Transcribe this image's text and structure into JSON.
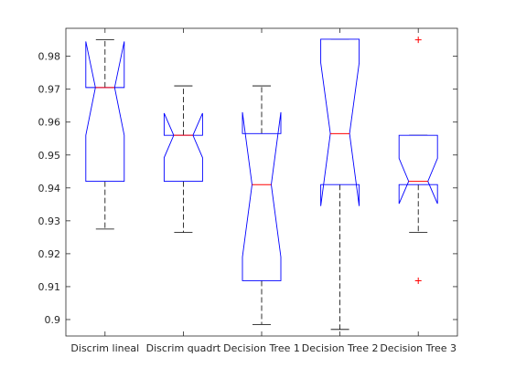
{
  "chart_data": {
    "type": "boxplot",
    "notched": true,
    "title": "",
    "xlabel": "",
    "ylabel": "",
    "ylim": [
      0.895,
      0.9885
    ],
    "yticks": [
      0.9,
      0.91,
      0.92,
      0.93,
      0.94,
      0.95,
      0.96,
      0.97,
      0.98
    ],
    "ytick_labels": [
      "0.9",
      "0.91",
      "0.92",
      "0.93",
      "0.94",
      "0.95",
      "0.96",
      "0.97",
      "0.98"
    ],
    "grid": false,
    "categories": [
      "Discrim  lineal",
      "Discrim  quadrt",
      "Decision Tree 1",
      "Decision Tree 2",
      "Decision Tree 3"
    ],
    "boxes": [
      {
        "name": "Discrim  lineal",
        "whisker_low": 0.9275,
        "q1": 0.942,
        "median": 0.9705,
        "q3": 0.9705,
        "whisker_high": 0.985,
        "notch_low": 0.956,
        "notch_high": 0.9845,
        "outliers": []
      },
      {
        "name": "Discrim  quadrt",
        "whisker_low": 0.9265,
        "q1": 0.942,
        "median": 0.956,
        "q3": 0.956,
        "whisker_high": 0.971,
        "notch_low": 0.9492,
        "notch_high": 0.9627,
        "outliers": []
      },
      {
        "name": "Decision Tree 1",
        "whisker_low": 0.8985,
        "q1": 0.9118,
        "median": 0.941,
        "q3": 0.9565,
        "whisker_high": 0.971,
        "notch_low": 0.919,
        "notch_high": 0.963,
        "outliers": []
      },
      {
        "name": "Decision Tree 2",
        "whisker_low": 0.897,
        "q1": 0.941,
        "median": 0.9565,
        "q3": 0.9852,
        "whisker_high": 0.9852,
        "notch_low": 0.9345,
        "notch_high": 0.978,
        "outliers": []
      },
      {
        "name": "Decision Tree 3",
        "whisker_low": 0.9265,
        "q1": 0.941,
        "median": 0.942,
        "q3": 0.956,
        "whisker_high": 0.956,
        "notch_low": 0.9352,
        "notch_high": 0.949,
        "outliers": [
          0.9118,
          0.985
        ]
      }
    ],
    "colors": {
      "box": "#0000ff",
      "median": "#ff0000",
      "whisker": "#000000",
      "outlier": "#ff0000",
      "axis": "#262626"
    }
  }
}
